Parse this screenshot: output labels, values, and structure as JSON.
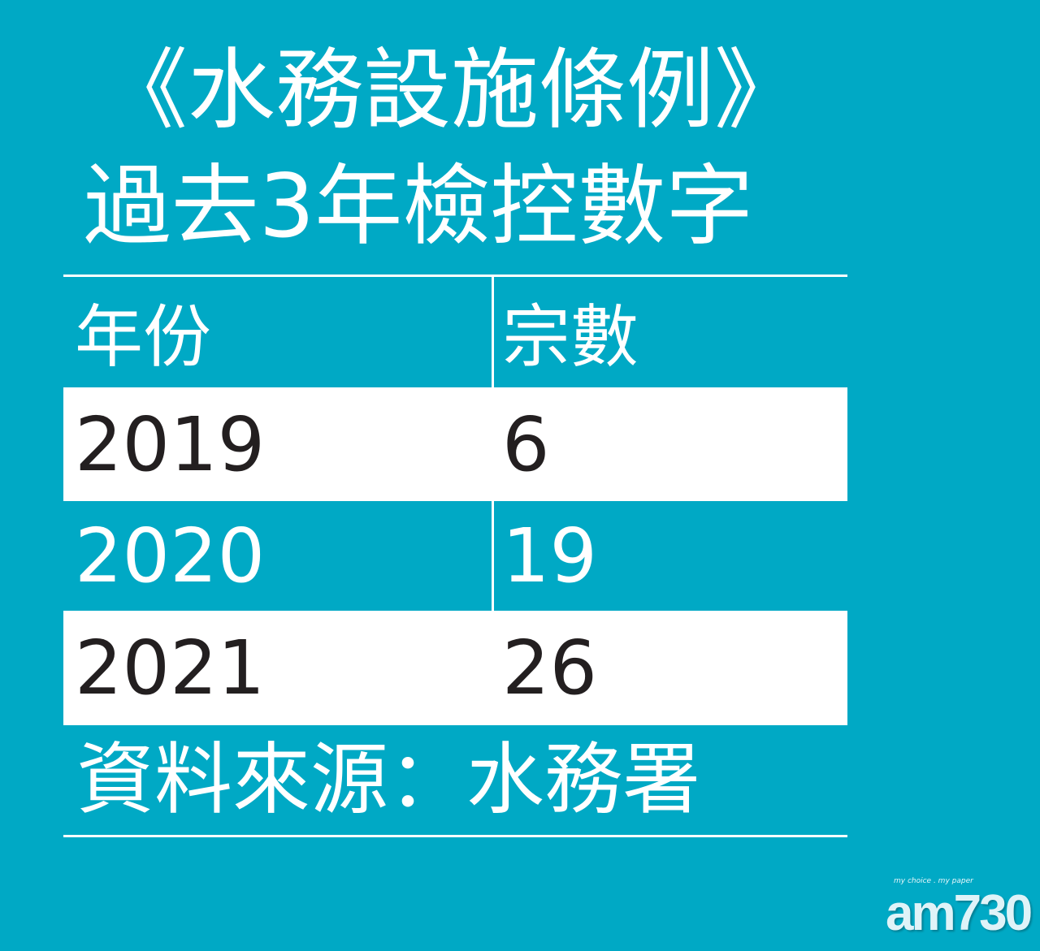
{
  "title": {
    "line1": "《水務設施條例》",
    "line2": "過去3年檢控數字"
  },
  "colors": {
    "background": "#00a9c5",
    "highlight_row": "#ffffff",
    "dark_text": "#231f20"
  },
  "chart_data": {
    "type": "table",
    "title": "《水務設施條例》過去3年檢控數字",
    "columns": [
      "年份",
      "宗數"
    ],
    "rows": [
      {
        "year": "2019",
        "count": "6"
      },
      {
        "year": "2020",
        "count": "19"
      },
      {
        "year": "2021",
        "count": "26"
      }
    ]
  },
  "source": "資料來源：水務署",
  "logo": {
    "tagline": "my choice . my paper",
    "brand": "am730"
  }
}
